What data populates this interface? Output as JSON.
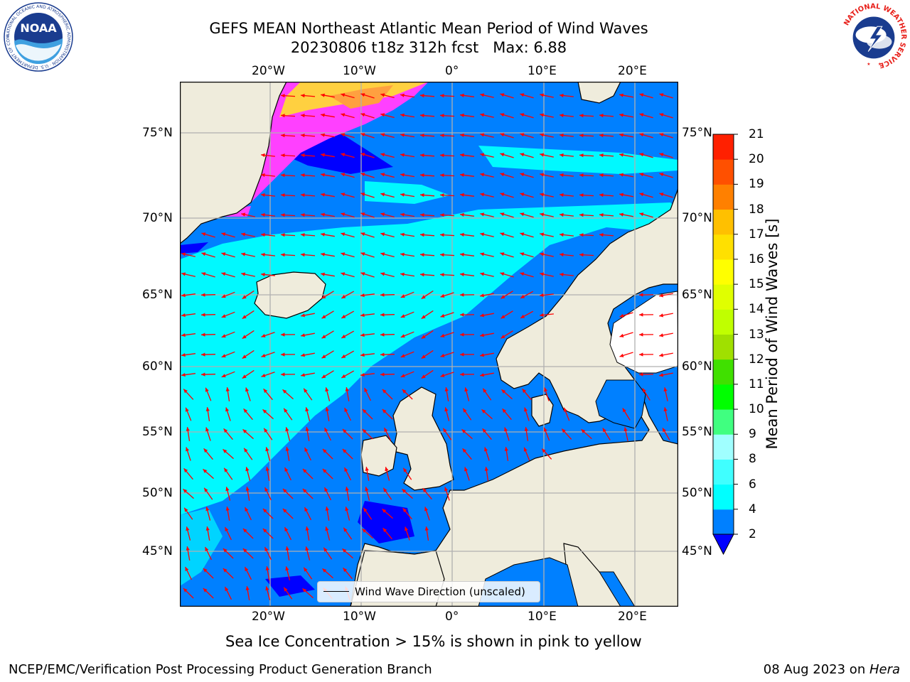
{
  "header": {
    "title_line1": "GEFS MEAN Northeast Atlantic Mean Period of Wind Waves",
    "title_line2": "20230806 t18z 312h fcst   Max: 6.88"
  },
  "logos": {
    "noaa_text": "NOAA",
    "noaa_ring_text": "NATIONAL OCEANIC AND ATMOSPHERIC ADMINISTRATION · U.S. DEPARTMENT OF COMMERCE",
    "nws_ring_text": "NATIONAL WEATHER SERVICE"
  },
  "map": {
    "lon_ticks": [
      "20°W",
      "10°W",
      "0°",
      "10°E",
      "20°E"
    ],
    "lat_ticks": [
      "75°N",
      "70°N",
      "65°N",
      "60°N",
      "55°N",
      "50°N",
      "45°N"
    ],
    "lon_range": [
      -30,
      24
    ],
    "lat_range": [
      41,
      77
    ],
    "grid": true,
    "colors": {
      "land": "#efecdc",
      "ocean_low": "#0000ff",
      "ocean_2_4": "#0080ff",
      "ocean_4_6": "#00ffff",
      "arrow": "#ff0000",
      "sea_ice_pink": "#ff40ff",
      "sea_ice_yellow": "#ffd040"
    },
    "legend": {
      "label": "Wind Wave Direction (unscaled)"
    }
  },
  "colorbar": {
    "label": "Mean Period of Wind Waves [s]",
    "ticks": [
      "2",
      "4",
      "6",
      "8",
      "9",
      "10",
      "11",
      "12",
      "13",
      "14",
      "15",
      "16",
      "17",
      "18",
      "19",
      "20",
      "21"
    ],
    "colors": [
      "#0080ff",
      "#00ffff",
      "#40ffff",
      "#a0ffff",
      "#40ff80",
      "#00ff00",
      "#40e000",
      "#a0e000",
      "#c0ff00",
      "#e0ff00",
      "#ffff00",
      "#ffe000",
      "#ffc000",
      "#ff8000",
      "#ff5000",
      "#ff2000"
    ],
    "extend_color": "#0000ff"
  },
  "footer": {
    "subtitle": "Sea Ice Concentration > 15% is shown in pink to yellow",
    "credit_left": "NCEP/EMC/Verification Post Processing Product Generation Branch",
    "credit_date": "08 Aug 2023 on ",
    "credit_host": "Hera"
  }
}
